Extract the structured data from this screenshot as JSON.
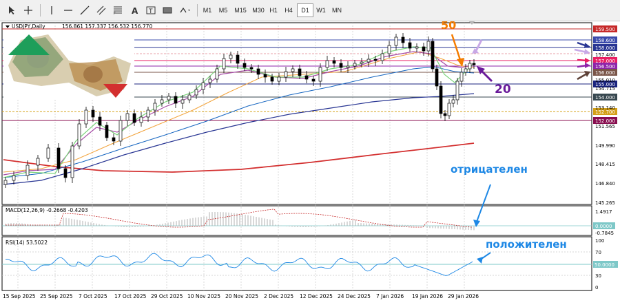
{
  "toolbar": {
    "timeframes": [
      "M1",
      "M5",
      "M15",
      "M30",
      "H1",
      "H4",
      "D1",
      "W1",
      "MN"
    ],
    "active_timeframe": "D1"
  },
  "chart_header": {
    "symbol_label": "USDJPY,Daily",
    "ohlc": "156.861 157.337 156.532 156.770"
  },
  "price_axis": {
    "tick_labels": [
      "157.400",
      "155.010",
      "154.715",
      "153.140",
      "151.565",
      "149.990",
      "148.415",
      "146.840",
      "145.265"
    ],
    "price_tags": [
      {
        "value": "159.500",
        "color": "#c62828"
      },
      {
        "value": "158.600",
        "color": "#3949ab"
      },
      {
        "value": "158.000",
        "color": "#283593"
      },
      {
        "value": "157.000",
        "color": "#e91e63"
      },
      {
        "value": "156.500",
        "color": "#8e24aa"
      },
      {
        "value": "156.000",
        "color": "#795548"
      },
      {
        "value": "155.000",
        "color": "#1a237e"
      },
      {
        "value": "154.000",
        "color": "#37474f"
      },
      {
        "value": "152.700",
        "color": "#d4a017"
      },
      {
        "value": "152.000",
        "color": "#880e4f"
      }
    ]
  },
  "macd": {
    "label": "MACD(12,26,9) -0.2668 -0.4203",
    "tick_labels": [
      "1.4917",
      "0.0000",
      "-0.7845"
    ]
  },
  "rsi": {
    "label": "RSI(14) 53.5022",
    "tick_labels": [
      "100",
      "70",
      "50.0000",
      "30",
      "0"
    ]
  },
  "date_labels": [
    "15 Sep 2025",
    "25 Sep 2025",
    "7 Oct 2025",
    "17 Oct 2025",
    "29 Oct 2025",
    "10 Nov 2025",
    "20 Nov 2025",
    "2 Dec 2025",
    "12 Dec 2025",
    "24 Dec 2025",
    "7 Jan 2026",
    "19 Jan 2026",
    "29 Jan 2026"
  ],
  "annotations": {
    "ma50": "50",
    "ma20": "20",
    "macd_note": "отрицателен",
    "rsi_note": "положителен"
  }
}
